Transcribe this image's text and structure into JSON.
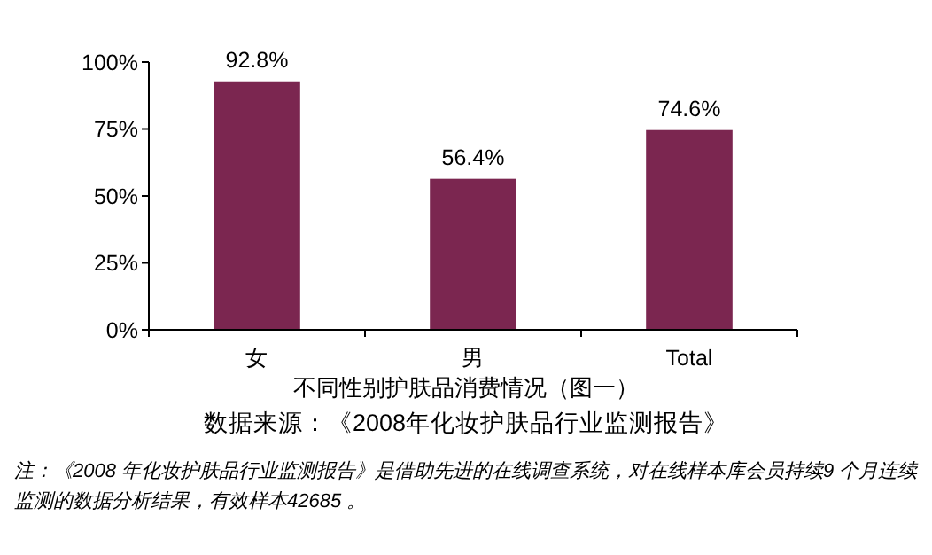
{
  "chart_data": {
    "type": "bar",
    "title": "不同性别护肤品消费情况（图一）",
    "categories": [
      "女",
      "男",
      "Total"
    ],
    "values": [
      92.8,
      56.4,
      74.6
    ],
    "value_labels": [
      "92.8%",
      "56.4%",
      "74.6%"
    ],
    "color": "#7b2650",
    "ylim": [
      0,
      100
    ],
    "yticks": [
      {
        "value": 0,
        "label": "0%"
      },
      {
        "value": 25,
        "label": "25%"
      },
      {
        "value": 50,
        "label": "50%"
      },
      {
        "value": 75,
        "label": "75%"
      },
      {
        "value": 100,
        "label": "100%"
      }
    ],
    "grid": false,
    "annotations": [
      "数据来源：《2008年化妆护肤品行业监测报告》",
      "注：《2008 年化妆护肤品行业监测报告》是借助先进的在线调查系统，对在线样本库会员持续9 个月连续监测的数据分析结果，有效样本42685 。"
    ]
  }
}
